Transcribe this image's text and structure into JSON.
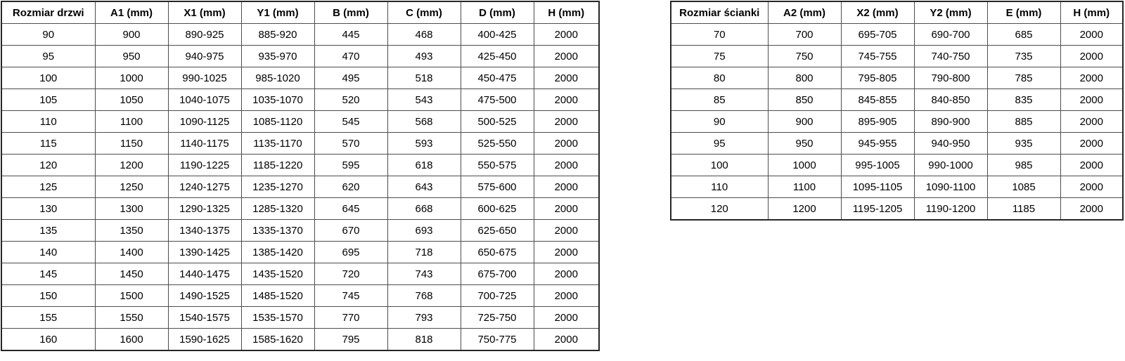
{
  "door_table": {
    "headers": [
      "Rozmiar drzwi",
      "A1 (mm)",
      "X1 (mm)",
      "Y1 (mm)",
      "B (mm)",
      "C (mm)",
      "D (mm)",
      "H (mm)"
    ],
    "rows": [
      [
        "90",
        "900",
        "890-925",
        "885-920",
        "445",
        "468",
        "400-425",
        "2000"
      ],
      [
        "95",
        "950",
        "940-975",
        "935-970",
        "470",
        "493",
        "425-450",
        "2000"
      ],
      [
        "100",
        "1000",
        "990-1025",
        "985-1020",
        "495",
        "518",
        "450-475",
        "2000"
      ],
      [
        "105",
        "1050",
        "1040-1075",
        "1035-1070",
        "520",
        "543",
        "475-500",
        "2000"
      ],
      [
        "110",
        "1100",
        "1090-1125",
        "1085-1120",
        "545",
        "568",
        "500-525",
        "2000"
      ],
      [
        "115",
        "1150",
        "1140-1175",
        "1135-1170",
        "570",
        "593",
        "525-550",
        "2000"
      ],
      [
        "120",
        "1200",
        "1190-1225",
        "1185-1220",
        "595",
        "618",
        "550-575",
        "2000"
      ],
      [
        "125",
        "1250",
        "1240-1275",
        "1235-1270",
        "620",
        "643",
        "575-600",
        "2000"
      ],
      [
        "130",
        "1300",
        "1290-1325",
        "1285-1320",
        "645",
        "668",
        "600-625",
        "2000"
      ],
      [
        "135",
        "1350",
        "1340-1375",
        "1335-1370",
        "670",
        "693",
        "625-650",
        "2000"
      ],
      [
        "140",
        "1400",
        "1390-1425",
        "1385-1420",
        "695",
        "718",
        "650-675",
        "2000"
      ],
      [
        "145",
        "1450",
        "1440-1475",
        "1435-1520",
        "720",
        "743",
        "675-700",
        "2000"
      ],
      [
        "150",
        "1500",
        "1490-1525",
        "1485-1520",
        "745",
        "768",
        "700-725",
        "2000"
      ],
      [
        "155",
        "1550",
        "1540-1575",
        "1535-1570",
        "770",
        "793",
        "725-750",
        "2000"
      ],
      [
        "160",
        "1600",
        "1590-1625",
        "1585-1620",
        "795",
        "818",
        "750-775",
        "2000"
      ]
    ]
  },
  "wall_table": {
    "headers": [
      "Rozmiar ścianki",
      "A2 (mm)",
      "X2 (mm)",
      "Y2 (mm)",
      "E (mm)",
      "H (mm)"
    ],
    "rows": [
      [
        "70",
        "700",
        "695-705",
        "690-700",
        "685",
        "2000"
      ],
      [
        "75",
        "750",
        "745-755",
        "740-750",
        "735",
        "2000"
      ],
      [
        "80",
        "800",
        "795-805",
        "790-800",
        "785",
        "2000"
      ],
      [
        "85",
        "850",
        "845-855",
        "840-850",
        "835",
        "2000"
      ],
      [
        "90",
        "900",
        "895-905",
        "890-900",
        "885",
        "2000"
      ],
      [
        "95",
        "950",
        "945-955",
        "940-950",
        "935",
        "2000"
      ],
      [
        "100",
        "1000",
        "995-1005",
        "990-1000",
        "985",
        "2000"
      ],
      [
        "110",
        "1100",
        "1095-1105",
        "1090-1100",
        "1085",
        "2000"
      ],
      [
        "120",
        "1200",
        "1195-1205",
        "1190-1200",
        "1185",
        "2000"
      ]
    ]
  },
  "colors": {
    "background": "#ffffff",
    "text": "#000000",
    "grid_line": "#4d4d4d",
    "outer_border": "#262626"
  }
}
